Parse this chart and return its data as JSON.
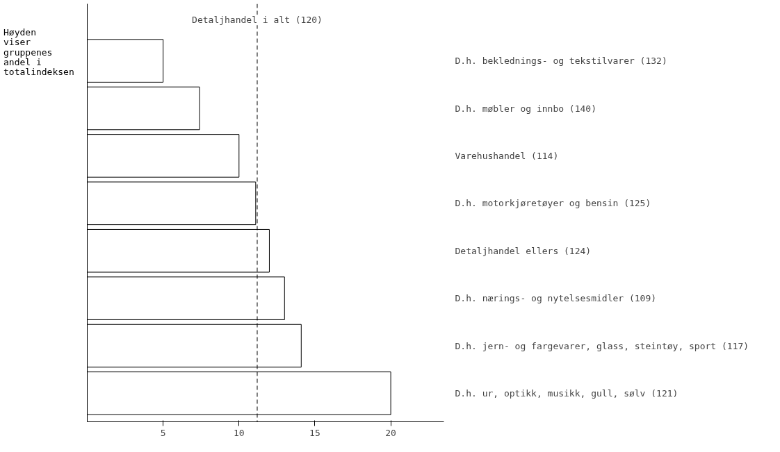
{
  "chart_data": {
    "type": "bar",
    "orientation": "horizontal",
    "categories": [
      "D.h. beklednings- og tekstilvarer (132)",
      "D.h. møbler og innbo (140)",
      "Varehushandel (114)",
      "D.h. motorkjøretøyer og bensin (125)",
      "Detaljhandel ellers (124)",
      "D.h. nærings- og nytelsesmidler (109)",
      "D.h. jern- og fargevarer, glass, steintøy, sport (117)",
      "D.h. ur, optikk, musikk, gull, sølv (121)"
    ],
    "values": [
      5.0,
      7.4,
      10.0,
      11.1,
      12.0,
      13.0,
      14.1,
      20.0
    ],
    "color": "#ffffff",
    "xlim": [
      0,
      23.5
    ],
    "xticks": [
      5,
      10,
      15,
      20
    ],
    "ref_lines": [
      {
        "axis": "x",
        "value": 11.2,
        "label": "Detaljhandel i alt (120)",
        "line_style": "dashed",
        "color": "#000000"
      }
    ],
    "annotations": [
      "Høyden viser gruppenes andel i totalindeksen"
    ],
    "grid": false
  }
}
